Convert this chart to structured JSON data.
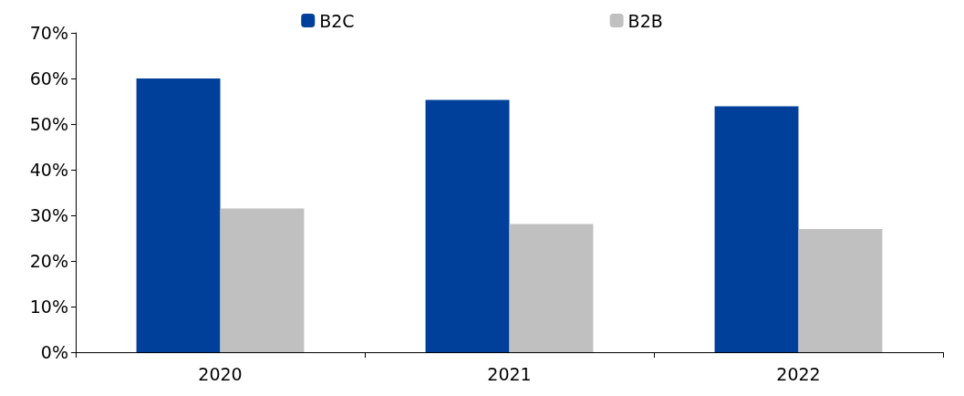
{
  "chart_data": {
    "type": "bar",
    "categories": [
      "2020",
      "2021",
      "2022"
    ],
    "series": [
      {
        "name": "B2C",
        "color": "#00409a",
        "values": [
          60.0,
          55.3,
          53.9
        ]
      },
      {
        "name": "B2B",
        "color": "#c0c0c0",
        "values": [
          31.5,
          28.1,
          27.0
        ]
      }
    ],
    "ylim": [
      0,
      70
    ],
    "yticks": [
      {
        "value": 0,
        "label": "0%"
      },
      {
        "value": 10,
        "label": "10%"
      },
      {
        "value": 20,
        "label": "20%"
      },
      {
        "value": 30,
        "label": "30%"
      },
      {
        "value": 40,
        "label": "40%"
      },
      {
        "value": 50,
        "label": "50%"
      },
      {
        "value": 60,
        "label": "60%"
      },
      {
        "value": 70,
        "label": "70%"
      }
    ],
    "grid": false,
    "legend": "top"
  }
}
